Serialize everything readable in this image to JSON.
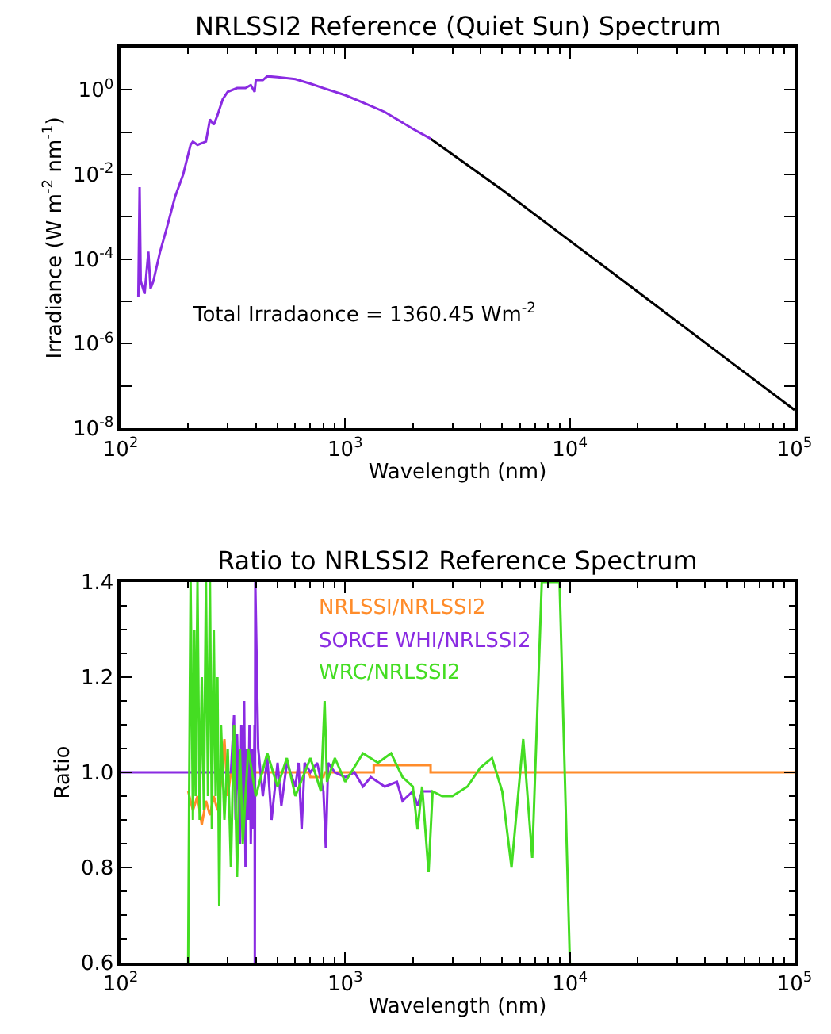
{
  "chart_data": [
    {
      "type": "line",
      "title": "NRLSSI2 Reference (Quiet Sun) Spectrum",
      "xlabel": "Wavelength (nm)",
      "ylabel": "Irradiance (W m$^{-2}$ nm$^{-1}$)",
      "log": "xy",
      "xlim": [
        100,
        100000
      ],
      "xticks": [
        {
          "value": 100,
          "label": "10$^{2}$"
        },
        {
          "value": 1000,
          "label": "10$^{3}$"
        },
        {
          "value": 10000,
          "label": "10$^{4}$"
        },
        {
          "value": 100000,
          "label": "10$^{5}$"
        }
      ],
      "ylim": [
        1e-08,
        10
      ],
      "yticks": [
        {
          "value": 1e-08,
          "label": "10$^{-8}$"
        },
        {
          "value": 1e-07,
          "label": null
        },
        {
          "value": 1e-06,
          "label": "10$^{-6}$"
        },
        {
          "value": 1e-05,
          "label": null
        },
        {
          "value": 0.0001,
          "label": "10$^{-4}$"
        },
        {
          "value": 0.001,
          "label": null
        },
        {
          "value": 0.01,
          "label": "10$^{-2}$"
        },
        {
          "value": 0.1,
          "label": null
        },
        {
          "value": 1,
          "label": "10$^{0}$"
        },
        {
          "value": 10,
          "label": null
        }
      ],
      "annotations": [
        "Total Irradaonce = 1360.45 Wm$^{-2}$"
      ],
      "series": [
        {
          "color": "#000000",
          "x": [
            2400,
            5000,
            10000,
            20000,
            50000,
            100000
          ],
          "values": [
            0.07,
            0.0043,
            0.00027,
            1.7e-05,
            4.3e-07,
            2.7e-08
          ]
        },
        {
          "color": "#8a2be2",
          "x": [
            120,
            121.6,
            123,
            128,
            133,
            136,
            140,
            150,
            160,
            175,
            190,
            205,
            210,
            220,
            240,
            250,
            260,
            270,
            285,
            300,
            330,
            360,
            380,
            395,
            400,
            430,
            450,
            500,
            600,
            700,
            800,
            1000,
            1200,
            1500,
            2000,
            2400
          ],
          "values": [
            1.3e-05,
            0.005,
            3e-05,
            1.5e-05,
            0.00015,
            2e-05,
            3e-05,
            0.00015,
            0.0005,
            0.003,
            0.01,
            0.05,
            0.06,
            0.05,
            0.06,
            0.2,
            0.15,
            0.25,
            0.6,
            0.9,
            1.1,
            1.1,
            1.3,
            0.9,
            1.7,
            1.7,
            2.1,
            2.0,
            1.8,
            1.4,
            1.1,
            0.75,
            0.5,
            0.3,
            0.12,
            0.07
          ]
        }
      ]
    },
    {
      "type": "line",
      "title": "Ratio to NRLSSI2 Reference Spectrum",
      "xlabel": "Wavelength (nm)",
      "ylabel": "Ratio",
      "log": "x",
      "legend": "top",
      "xlim": [
        100,
        100000
      ],
      "xticks": [
        {
          "value": 100,
          "label": "10$^{2}$"
        },
        {
          "value": 1000,
          "label": "10$^{3}$"
        },
        {
          "value": 10000,
          "label": "10$^{4}$"
        },
        {
          "value": 100000,
          "label": "10$^{5}$"
        }
      ],
      "ylim": [
        0.6,
        1.4
      ],
      "yticks": [
        0.6,
        0.8,
        {
          "value": 1.0,
          "label": "1.0"
        },
        1.2,
        1.4
      ],
      "series": [
        {
          "name": "NRLSSI/NRLSSI2",
          "color": "#ff8c2a",
          "x": [
            200,
            210,
            220,
            230,
            240,
            250,
            260,
            270,
            280,
            290,
            300,
            310,
            690,
            700,
            800,
            810,
            1340,
            1340,
            2400,
            2400,
            100000
          ],
          "values": [
            0.96,
            0.92,
            0.95,
            0.89,
            0.94,
            0.91,
            0.95,
            0.92,
            0.98,
            1.07,
            0.95,
            1.0,
            1.0,
            0.99,
            0.99,
            1.0,
            1.0,
            1.015,
            1.015,
            1.0,
            1.0
          ]
        },
        {
          "name": "SORCE WHI/NRLSSI2",
          "color": "#8a2be2",
          "x": [
            100,
            310,
            320,
            325,
            330,
            340,
            345,
            350,
            355,
            360,
            365,
            370,
            375,
            380,
            385,
            390,
            395,
            396,
            398,
            410,
            430,
            450,
            470,
            500,
            520,
            550,
            600,
            620,
            640,
            660,
            700,
            750,
            800,
            820,
            840,
            900,
            1000,
            1100,
            1200,
            1300,
            1500,
            1700,
            1800,
            2000,
            2100,
            2200,
            2400
          ],
          "values": [
            1.0,
            1.0,
            1.12,
            0.9,
            1.08,
            0.85,
            1.1,
            0.92,
            1.15,
            0.8,
            1.05,
            0.9,
            1.1,
            0.85,
            1.05,
            0.88,
            1.1,
            0.6,
            1.4,
            1.05,
            0.95,
            1.03,
            0.9,
            1.02,
            0.93,
            1.02,
            0.97,
            1.02,
            0.88,
            1.02,
            1.0,
            1.02,
            0.96,
            0.84,
            1.02,
            1.0,
            0.99,
            1.0,
            0.97,
            0.99,
            0.97,
            0.98,
            0.94,
            0.96,
            0.93,
            0.96,
            0.96
          ]
        },
        {
          "name": "WRC/NRLSSI2",
          "color": "#44dd22",
          "x": [
            200,
            202,
            205,
            210,
            213,
            216,
            220,
            225,
            230,
            235,
            240,
            245,
            250,
            255,
            260,
            265,
            270,
            275,
            280,
            290,
            300,
            310,
            320,
            330,
            340,
            350,
            370,
            400,
            450,
            500,
            550,
            600,
            700,
            780,
            810,
            830,
            900,
            1000,
            1200,
            1400,
            1600,
            1800,
            2000,
            2100,
            2200,
            2350,
            2450,
            2700,
            3000,
            3500,
            4000,
            4500,
            5000,
            5500,
            6200,
            6800,
            7500,
            9000,
            10000
          ],
          "values": [
            0.6,
            0.95,
            1.4,
            0.9,
            1.3,
            0.95,
            1.4,
            0.9,
            1.2,
            0.92,
            1.4,
            0.95,
            1.4,
            0.88,
            1.3,
            0.95,
            1.2,
            0.72,
            1.1,
            0.9,
            1.05,
            0.8,
            1.1,
            0.78,
            1.05,
            0.85,
            1.05,
            0.95,
            1.04,
            0.97,
            1.03,
            0.95,
            1.03,
            0.96,
            1.15,
            0.98,
            1.03,
            0.98,
            1.04,
            1.02,
            1.04,
            0.99,
            0.97,
            0.88,
            0.97,
            0.79,
            0.96,
            0.95,
            0.95,
            0.97,
            1.01,
            1.03,
            0.96,
            0.8,
            1.07,
            0.82,
            1.4,
            1.4,
            0.6
          ]
        }
      ]
    }
  ]
}
